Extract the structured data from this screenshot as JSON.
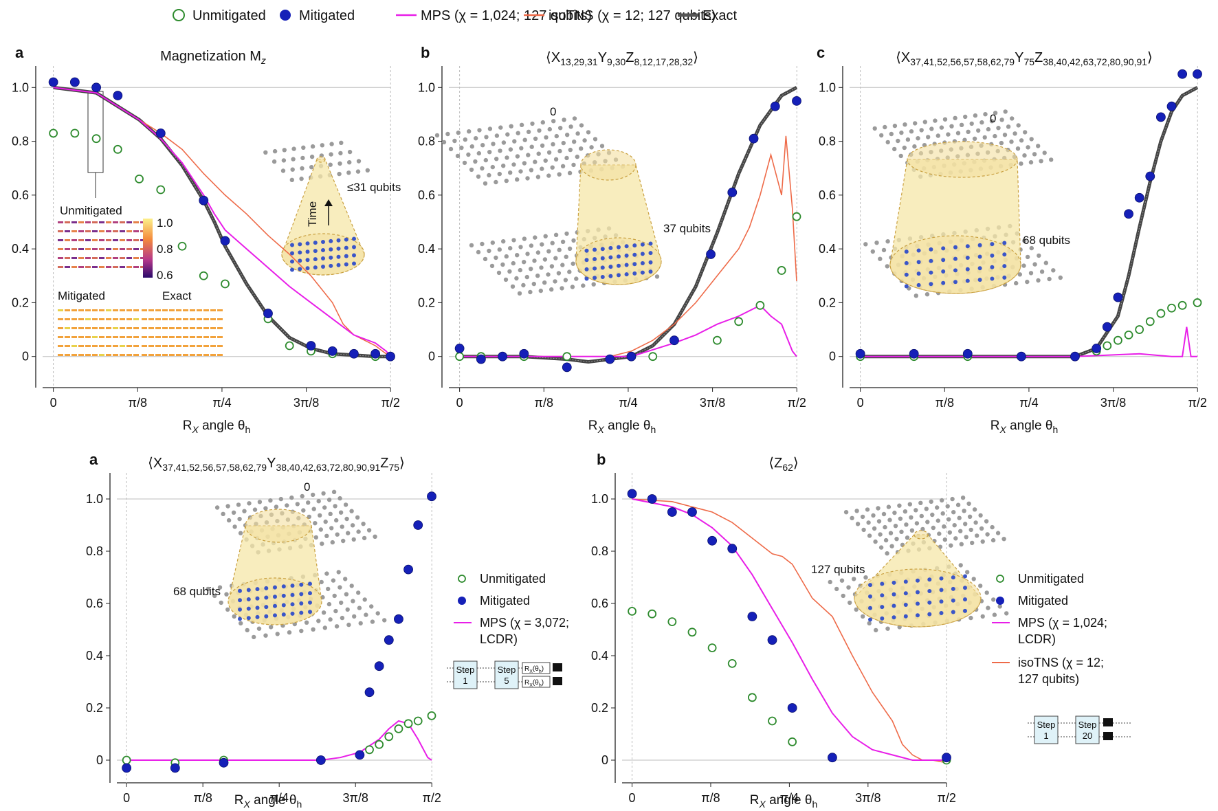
{
  "top_legend": [
    {
      "label": "Unmitigated",
      "marker": "open-circle",
      "color": "#2e8b2e"
    },
    {
      "label": "Mitigated",
      "marker": "filled-circle",
      "color": "#1520b8"
    },
    {
      "label": "MPS (χ = 1,024; 127 qubits)",
      "marker": "line",
      "color": "#e81ee8"
    },
    {
      "label": "isoTNS (χ = 12; 127 qubits)",
      "marker": "line",
      "color": "#ee6a48"
    },
    {
      "label": "Exact",
      "marker": "thick-line",
      "color": "#555555"
    }
  ],
  "colors": {
    "unmitigated": "#2e8b2e",
    "mitigated": "#1520b8",
    "mps": "#e81ee8",
    "isotns": "#ee6a48",
    "exact": "#444444",
    "cone": "#f6e7a8",
    "lattice": "#9a9a9a",
    "qubit": "#3a55c8"
  },
  "chart_data": [
    {
      "letter": "a",
      "type": "scatter",
      "title": "Magnetization M",
      "title_sub": "z",
      "xlabel": "R",
      "xlabel_sub1": "X",
      "xlabel_mid": " angle θ",
      "xlabel_sub2": "h",
      "xticks": [
        "0",
        "π/8",
        "π/4",
        "3π/8",
        "π/2"
      ],
      "yticks": [
        "0",
        "0.2",
        "0.4",
        "0.6",
        "0.8",
        "1.0"
      ],
      "xlim": [
        -0.05,
        1.57
      ],
      "ylim": [
        -0.08,
        1.08
      ],
      "annotations": [
        "≤31 qubits",
        "Time",
        "Unmitigated",
        "Mitigated",
        "Exact"
      ],
      "colorbar_ticks": [
        "1.0",
        "0.8",
        "0.6"
      ],
      "series": [
        {
          "name": "Unmitigated",
          "kind": "open",
          "x": [
            0,
            0.1,
            0.2,
            0.3,
            0.4,
            0.5,
            0.6,
            0.7,
            0.8,
            1.0,
            1.1,
            1.2,
            1.3,
            1.4,
            1.5
          ],
          "y": [
            0.83,
            0.83,
            0.81,
            0.77,
            0.66,
            0.62,
            0.41,
            0.3,
            0.27,
            0.14,
            0.04,
            0.02,
            0.01,
            0.01,
            0.0
          ]
        },
        {
          "name": "Mitigated",
          "kind": "filled",
          "x": [
            0,
            0.1,
            0.2,
            0.3,
            0.5,
            0.7,
            0.8,
            1.0,
            1.2,
            1.3,
            1.4,
            1.5,
            1.57
          ],
          "y": [
            1.02,
            1.02,
            1.0,
            0.97,
            0.83,
            0.58,
            0.43,
            0.16,
            0.04,
            0.02,
            0.01,
            0.01,
            0.0
          ]
        },
        {
          "name": "MPS",
          "kind": "line",
          "x": [
            0.0,
            0.2,
            0.4,
            0.5,
            0.6,
            0.7,
            0.75,
            0.8,
            0.9,
            1.0,
            1.1,
            1.2,
            1.3,
            1.4,
            1.5,
            1.55,
            1.57
          ],
          "y": [
            1.0,
            0.98,
            0.88,
            0.81,
            0.72,
            0.6,
            0.53,
            0.47,
            0.4,
            0.33,
            0.26,
            0.2,
            0.14,
            0.08,
            0.05,
            0.02,
            0.0
          ]
        },
        {
          "name": "isoTNS",
          "kind": "line",
          "x": [
            0.0,
            0.2,
            0.4,
            0.5,
            0.6,
            0.7,
            0.8,
            0.9,
            1.0,
            1.1,
            1.2,
            1.3,
            1.35,
            1.4,
            1.45,
            1.5,
            1.55,
            1.57
          ],
          "y": [
            1.0,
            0.98,
            0.88,
            0.83,
            0.77,
            0.68,
            0.6,
            0.53,
            0.45,
            0.38,
            0.3,
            0.2,
            0.12,
            0.08,
            0.06,
            0.04,
            0.01,
            0.0
          ]
        },
        {
          "name": "Exact",
          "kind": "exact",
          "x": [
            0.0,
            0.2,
            0.4,
            0.5,
            0.6,
            0.7,
            0.75,
            0.8,
            0.9,
            1.0,
            1.1,
            1.2,
            1.3,
            1.4,
            1.5,
            1.57
          ],
          "y": [
            1.0,
            0.98,
            0.88,
            0.81,
            0.71,
            0.58,
            0.5,
            0.41,
            0.27,
            0.15,
            0.07,
            0.03,
            0.01,
            0.005,
            0.0,
            0.0
          ]
        }
      ]
    },
    {
      "letter": "b",
      "type": "scatter",
      "title": "⟨X",
      "title_parts": [
        [
          "⟨X",
          ""
        ],
        [
          "13,29,31",
          "sub"
        ],
        [
          "Y",
          ""
        ],
        [
          "9,30",
          "sub"
        ],
        [
          "Z",
          ""
        ],
        [
          "8,12,17,28,32",
          "sub"
        ],
        [
          "⟩",
          ""
        ]
      ],
      "xlabel": "R",
      "xlabel_sub1": "X",
      "xlabel_mid": " angle θ",
      "xlabel_sub2": "h",
      "xticks": [
        "0",
        "π/8",
        "π/4",
        "3π/8",
        "π/2"
      ],
      "yticks": [
        "0",
        "0.2",
        "0.4",
        "0.6",
        "0.8",
        "1.0"
      ],
      "xlim": [
        -0.05,
        1.57
      ],
      "ylim": [
        -0.08,
        1.08
      ],
      "annotations": [
        "37 qubits",
        "0"
      ],
      "series": [
        {
          "name": "Unmitigated",
          "kind": "open",
          "x": [
            0,
            0.1,
            0.3,
            0.5,
            0.7,
            0.9,
            1.2,
            1.3,
            1.4,
            1.5,
            1.57
          ],
          "y": [
            0.0,
            0.0,
            0.0,
            0.0,
            -0.01,
            0.0,
            0.06,
            0.13,
            0.19,
            0.32,
            0.52
          ]
        },
        {
          "name": "Mitigated",
          "kind": "filled",
          "x": [
            0,
            0.1,
            0.2,
            0.3,
            0.5,
            0.7,
            0.8,
            1.0,
            1.17,
            1.27,
            1.37,
            1.47,
            1.57
          ],
          "y": [
            0.03,
            -0.01,
            0.0,
            0.01,
            -0.04,
            -0.01,
            0.0,
            0.06,
            0.38,
            0.61,
            0.81,
            0.93,
            0.95
          ]
        },
        {
          "name": "MPS",
          "kind": "line",
          "x": [
            0.0,
            0.6,
            0.8,
            1.0,
            1.1,
            1.2,
            1.3,
            1.4,
            1.45,
            1.5,
            1.55,
            1.57
          ],
          "y": [
            0.0,
            0.0,
            0.0,
            0.05,
            0.08,
            0.12,
            0.15,
            0.19,
            0.15,
            0.12,
            0.02,
            0.0
          ]
        },
        {
          "name": "isoTNS",
          "kind": "line",
          "x": [
            0.0,
            0.7,
            0.8,
            0.9,
            1.0,
            1.1,
            1.2,
            1.3,
            1.35,
            1.4,
            1.45,
            1.5,
            1.52,
            1.55,
            1.57
          ],
          "y": [
            0.0,
            0.0,
            0.02,
            0.06,
            0.12,
            0.2,
            0.3,
            0.4,
            0.48,
            0.6,
            0.75,
            0.6,
            0.82,
            0.55,
            0.28
          ]
        },
        {
          "name": "Exact",
          "kind": "exact",
          "x": [
            0.0,
            0.3,
            0.5,
            0.6,
            0.7,
            0.8,
            0.9,
            1.0,
            1.1,
            1.2,
            1.3,
            1.4,
            1.5,
            1.57
          ],
          "y": [
            0.0,
            0.0,
            -0.01,
            -0.02,
            -0.01,
            0.0,
            0.04,
            0.12,
            0.26,
            0.46,
            0.68,
            0.86,
            0.97,
            1.0
          ]
        }
      ]
    },
    {
      "letter": "c",
      "type": "scatter",
      "title_parts": [
        [
          "⟨X",
          ""
        ],
        [
          "37,41,52,56,57,58,62,79",
          "sub"
        ],
        [
          "Y",
          ""
        ],
        [
          "75",
          "sub"
        ],
        [
          "Z",
          ""
        ],
        [
          "38,40,42,63,72,80,90,91",
          "sub"
        ],
        [
          "⟩",
          ""
        ]
      ],
      "xlabel": "R",
      "xlabel_sub1": "X",
      "xlabel_mid": " angle θ",
      "xlabel_sub2": "h",
      "xticks": [
        "0",
        "π/8",
        "π/4",
        "3π/8",
        "π/2"
      ],
      "yticks": [
        "0",
        "0.2",
        "0.4",
        "0.6",
        "0.8",
        "1.0"
      ],
      "xlim": [
        -0.05,
        1.57
      ],
      "ylim": [
        -0.08,
        1.08
      ],
      "annotations": [
        "68 qubits",
        "0"
      ],
      "series": [
        {
          "name": "Unmitigated",
          "kind": "open",
          "x": [
            0,
            0.25,
            0.5,
            0.75,
            1.0,
            1.1,
            1.15,
            1.2,
            1.25,
            1.3,
            1.35,
            1.4,
            1.45,
            1.5,
            1.57
          ],
          "y": [
            0.0,
            0.0,
            0.0,
            0.0,
            0.0,
            0.02,
            0.04,
            0.06,
            0.08,
            0.1,
            0.13,
            0.16,
            0.18,
            0.19,
            0.2
          ]
        },
        {
          "name": "Mitigated",
          "kind": "filled",
          "x": [
            0,
            0.25,
            0.5,
            0.75,
            1.0,
            1.1,
            1.15,
            1.2,
            1.25,
            1.3,
            1.35,
            1.4,
            1.45,
            1.5,
            1.57
          ],
          "y": [
            0.01,
            0.01,
            0.01,
            0.0,
            0.0,
            0.03,
            0.11,
            0.22,
            0.53,
            0.59,
            0.67,
            0.89,
            0.93,
            1.05,
            1.05
          ]
        },
        {
          "name": "MPS",
          "kind": "line",
          "x": [
            0.0,
            1.0,
            1.3,
            1.45,
            1.5,
            1.52,
            1.54,
            1.57
          ],
          "y": [
            0.0,
            0.0,
            0.01,
            0.0,
            0.0,
            0.11,
            0.0,
            0.0
          ]
        },
        {
          "name": "Exact",
          "kind": "exact",
          "x": [
            0.0,
            1.0,
            1.1,
            1.2,
            1.25,
            1.3,
            1.35,
            1.4,
            1.45,
            1.5,
            1.57
          ],
          "y": [
            0.0,
            0.0,
            0.03,
            0.15,
            0.3,
            0.48,
            0.65,
            0.8,
            0.91,
            0.97,
            1.0
          ]
        }
      ]
    },
    {
      "letter": "a",
      "type": "scatter",
      "title_parts": [
        [
          "⟨X",
          ""
        ],
        [
          "37,41,52,56,57,58,62,79",
          "sub"
        ],
        [
          "Y",
          ""
        ],
        [
          "38,40,42,63,72,80,90,91",
          "sub"
        ],
        [
          "Z",
          ""
        ],
        [
          "75",
          "sub"
        ],
        [
          "⟩",
          ""
        ]
      ],
      "xlabel": "R",
      "xlabel_sub1": "X",
      "xlabel_mid": " angle θ",
      "xlabel_sub2": "h",
      "xticks": [
        "0",
        "π/8",
        "π/4",
        "3π/8",
        "π/2"
      ],
      "yticks": [
        "0",
        "0.2",
        "0.4",
        "0.6",
        "0.8",
        "1.0"
      ],
      "xlim": [
        -0.05,
        1.57
      ],
      "ylim": [
        -0.05,
        1.1
      ],
      "annotations": [
        "68 qubits",
        "0"
      ],
      "legend": [
        "Unmitigated",
        "Mitigated",
        "MPS (χ = 3,072;",
        "LCDR)"
      ],
      "circuit_labels": [
        "Step",
        "1",
        "Step",
        "5",
        "R",
        "X",
        "(θ",
        "h",
        ")"
      ],
      "series": [
        {
          "name": "Unmitigated",
          "kind": "open",
          "x": [
            0,
            0.25,
            0.5,
            1.0,
            1.2,
            1.25,
            1.3,
            1.35,
            1.4,
            1.45,
            1.5,
            1.57
          ],
          "y": [
            0.0,
            -0.01,
            0.0,
            0.0,
            0.02,
            0.04,
            0.06,
            0.09,
            0.12,
            0.14,
            0.15,
            0.17
          ]
        },
        {
          "name": "Mitigated",
          "kind": "filled",
          "x": [
            0,
            0.25,
            0.5,
            1.0,
            1.2,
            1.25,
            1.3,
            1.35,
            1.4,
            1.45,
            1.5,
            1.57
          ],
          "y": [
            -0.03,
            -0.03,
            -0.01,
            0.0,
            0.02,
            0.26,
            0.36,
            0.46,
            0.54,
            0.73,
            0.9,
            1.01
          ]
        },
        {
          "name": "MPS",
          "kind": "line",
          "x": [
            0.0,
            1.0,
            1.1,
            1.2,
            1.3,
            1.35,
            1.4,
            1.45,
            1.5,
            1.55,
            1.57
          ],
          "y": [
            0.0,
            0.0,
            0.01,
            0.03,
            0.08,
            0.12,
            0.15,
            0.14,
            0.08,
            0.01,
            0.0
          ]
        }
      ]
    },
    {
      "letter": "b",
      "type": "scatter",
      "title_parts": [
        [
          "⟨Z",
          ""
        ],
        [
          "62",
          "sub"
        ],
        [
          "⟩",
          ""
        ]
      ],
      "xlabel": "R",
      "xlabel_sub1": "X",
      "xlabel_mid": " angle θ",
      "xlabel_sub2": "h",
      "xticks": [
        "0",
        "π/8",
        "π/4",
        "3π/8",
        "π/2"
      ],
      "yticks": [
        "0",
        "0.2",
        "0.4",
        "0.6",
        "0.8",
        "1.0"
      ],
      "xlim": [
        -0.05,
        1.57
      ],
      "ylim": [
        -0.05,
        1.1
      ],
      "annotations": [
        "127 qubits"
      ],
      "legend": [
        "Unmitigated",
        "Mitigated",
        "MPS (χ = 1,024;",
        "LCDR)",
        "isoTNS (χ = 12;",
        "127 qubits)"
      ],
      "circuit_labels": [
        "Step",
        "1",
        "Step",
        "20"
      ],
      "series": [
        {
          "name": "Unmitigated",
          "kind": "open",
          "x": [
            0,
            0.1,
            0.2,
            0.3,
            0.4,
            0.5,
            0.6,
            0.7,
            0.8,
            1.0,
            1.57
          ],
          "y": [
            0.57,
            0.56,
            0.53,
            0.49,
            0.43,
            0.37,
            0.24,
            0.15,
            0.07,
            0.01,
            0.0
          ]
        },
        {
          "name": "Mitigated",
          "kind": "filled",
          "x": [
            0,
            0.1,
            0.2,
            0.3,
            0.4,
            0.5,
            0.6,
            0.7,
            0.8,
            1.0,
            1.57
          ],
          "y": [
            1.02,
            1.0,
            0.95,
            0.95,
            0.84,
            0.81,
            0.55,
            0.46,
            0.2,
            0.01,
            0.01
          ]
        },
        {
          "name": "MPS",
          "kind": "line",
          "x": [
            0.0,
            0.2,
            0.3,
            0.4,
            0.5,
            0.6,
            0.7,
            0.8,
            0.9,
            1.0,
            1.1,
            1.2,
            1.3,
            1.4,
            1.5,
            1.57
          ],
          "y": [
            1.0,
            0.97,
            0.94,
            0.89,
            0.82,
            0.71,
            0.58,
            0.45,
            0.31,
            0.18,
            0.09,
            0.04,
            0.02,
            0.0,
            0.0,
            0.0
          ]
        },
        {
          "name": "isoTNS",
          "kind": "line",
          "x": [
            0.0,
            0.2,
            0.4,
            0.5,
            0.6,
            0.7,
            0.75,
            0.8,
            0.9,
            1.0,
            1.1,
            1.2,
            1.3,
            1.35,
            1.4,
            1.45,
            1.5,
            1.57
          ],
          "y": [
            1.0,
            0.99,
            0.95,
            0.91,
            0.85,
            0.79,
            0.78,
            0.75,
            0.62,
            0.55,
            0.4,
            0.26,
            0.15,
            0.06,
            0.02,
            0.0,
            0.0,
            -0.01
          ]
        }
      ]
    }
  ]
}
